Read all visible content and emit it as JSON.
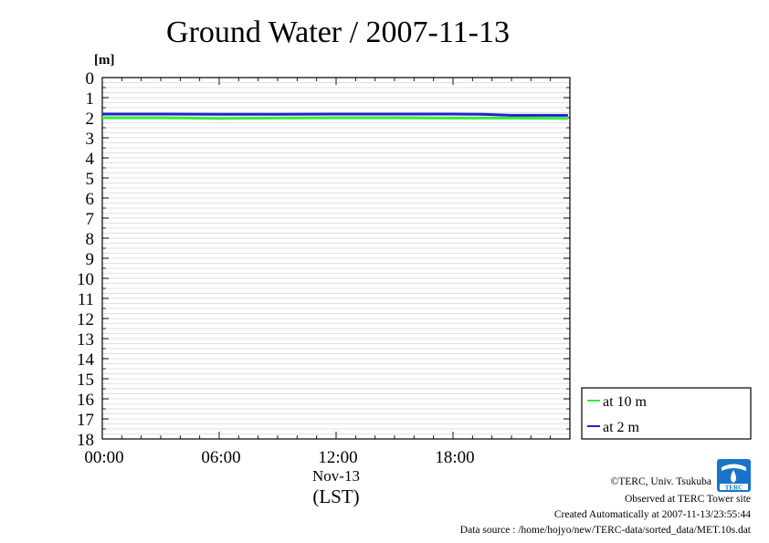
{
  "chart_data": {
    "type": "line",
    "title": "Ground Water / 2007-11-13",
    "y_unit": "[m]",
    "y_axis_inverted": true,
    "ylim": [
      0,
      18
    ],
    "y_ticks": [
      "0",
      "1",
      "2",
      "3",
      "4",
      "5",
      "6",
      "7",
      "8",
      "9",
      "10",
      "11",
      "12",
      "13",
      "14",
      "15",
      "16",
      "17",
      "18"
    ],
    "x_range_hours": [
      0,
      24
    ],
    "x_ticks": [
      {
        "hour": 0,
        "label": "00:00"
      },
      {
        "hour": 6,
        "label": "06:00"
      },
      {
        "hour": 12,
        "label": "12:00"
      },
      {
        "hour": 18,
        "label": "18:00"
      }
    ],
    "x_date_label": "Nov-13",
    "x_timezone_label": "(LST)",
    "grid": true,
    "legend_position": "right-bottom",
    "series": [
      {
        "name": "at 10 m",
        "color": "#33ee33",
        "x": [
          0,
          3,
          6,
          9,
          12,
          15,
          18,
          21,
          23.9
        ],
        "values": [
          2.0,
          2.0,
          2.03,
          2.02,
          2.0,
          2.0,
          2.02,
          2.02,
          2.03
        ]
      },
      {
        "name": "at 2 m",
        "color": "#2222cc",
        "x": [
          0,
          3,
          6,
          9,
          12,
          15,
          18,
          19.5,
          21,
          23.9
        ],
        "values": [
          1.82,
          1.82,
          1.83,
          1.83,
          1.82,
          1.82,
          1.82,
          1.83,
          1.88,
          1.88
        ]
      }
    ]
  },
  "credits": {
    "copyright": "©TERC, Univ. Tsukuba",
    "observed": "Observed at TERC Tower site",
    "created": "Created Automatically at 2007-11-13/23:55:44",
    "source": "Data source : /home/hojyo/new/TERC-data/sorted_data/MET.10s.dat"
  },
  "logo": {
    "text": "TERC",
    "color": "#1a73c9"
  }
}
